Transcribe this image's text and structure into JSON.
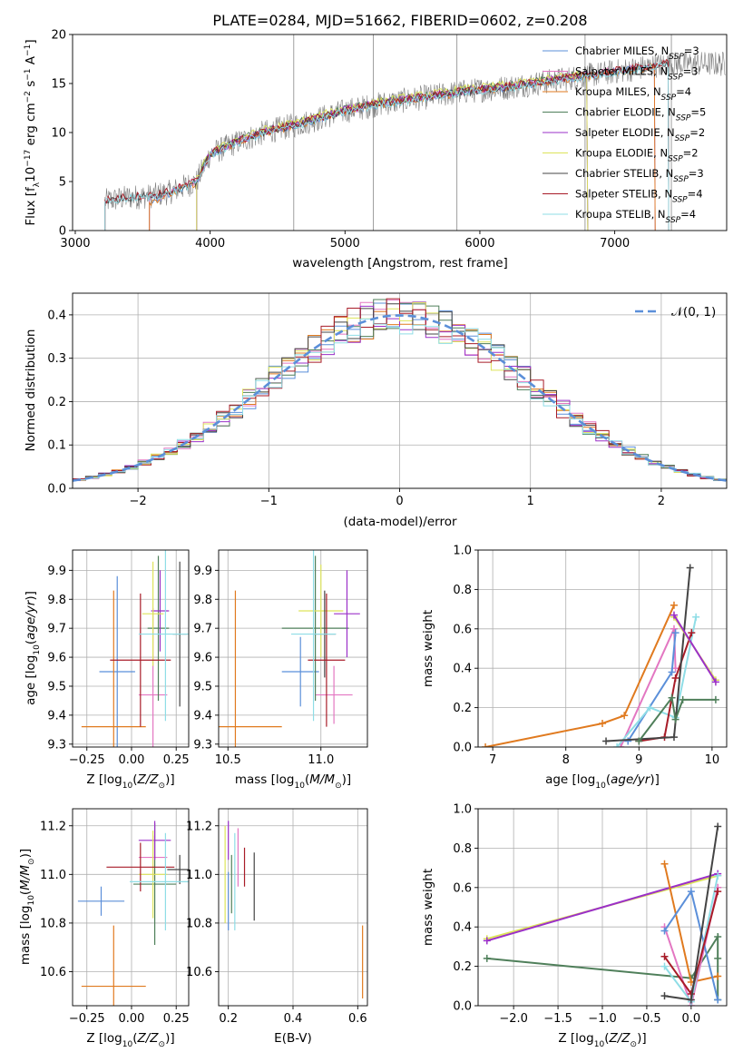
{
  "figure": {
    "title": "PLATE=0284, MJD=51662, FIBERID=0602, z=0.208",
    "colors": {
      "Chabrier MILES": "#5b8fd9",
      "Salpeter MILES": "#e377c2",
      "Kroupa MILES": "#e07a1f",
      "Chabrier ELODIE": "#4f7f5a",
      "Salpeter ELODIE": "#9b30c8",
      "Kroupa ELODIE": "#dde45a",
      "Chabrier STELIB": "#444444",
      "Salpeter STELIB": "#a81c28",
      "Kroupa STELIB": "#8fdde6",
      "data": "#7f7f7f",
      "normal": "#5b8fd9"
    }
  },
  "legend": {
    "spectrum": [
      {
        "name": "Chabrier MILES",
        "nssp": "3"
      },
      {
        "name": "Salpeter MILES",
        "nssp": "3"
      },
      {
        "name": "Kroupa MILES",
        "nssp": "4"
      },
      {
        "name": "Chabrier ELODIE",
        "nssp": "5"
      },
      {
        "name": "Salpeter ELODIE",
        "nssp": "2"
      },
      {
        "name": "Kroupa ELODIE",
        "nssp": "2"
      },
      {
        "name": "Chabrier STELIB",
        "nssp": "3"
      },
      {
        "name": "Salpeter STELIB",
        "nssp": "4"
      },
      {
        "name": "Kroupa STELIB",
        "nssp": "4"
      }
    ],
    "normal": "𝒩(0, 1)"
  },
  "chart_data": [
    {
      "id": "spectrum",
      "type": "line",
      "xlabel": "wavelength [Angstrom, rest frame]",
      "ylabel": "Flux [f_λ 10^−17 erg cm^−2 s^−1 A^−1]",
      "xlim": [
        2980,
        7830
      ],
      "ylim": [
        0,
        20
      ],
      "xticks": [
        3000,
        4000,
        5000,
        6000,
        7000
      ],
      "yticks": [
        0,
        5,
        10,
        15,
        20
      ],
      "grid": false,
      "legend_position": "right",
      "series": [
        {
          "name": "Chabrier MILES",
          "x": [
            3550,
            3700,
            3900,
            4000,
            4200,
            4400,
            4700,
            5000,
            5300,
            5600,
            5900,
            6200,
            6500,
            6800,
            7100,
            7300
          ],
          "y": [
            3.0,
            3.8,
            5.0,
            7.8,
            9.0,
            10.0,
            11.0,
            12.2,
            13.0,
            13.6,
            14.2,
            14.6,
            15.2,
            15.8,
            16.4,
            16.8
          ]
        },
        {
          "name": "Salpeter MILES",
          "x": [
            3550,
            3700,
            3900,
            4000,
            4200,
            4400,
            4700,
            5000,
            5300,
            5600,
            5900,
            6200,
            6500,
            6800,
            7100,
            7300
          ],
          "y": [
            3.1,
            3.9,
            5.1,
            7.9,
            9.1,
            10.1,
            11.1,
            12.3,
            13.1,
            13.7,
            14.3,
            14.7,
            15.3,
            15.9,
            16.5,
            16.9
          ]
        },
        {
          "name": "Kroupa MILES",
          "x": [
            3550,
            3700,
            3900,
            4000,
            4200,
            4400,
            4700,
            5000,
            5300,
            5600,
            5900,
            6200,
            6500,
            6800,
            7100,
            7300
          ],
          "y": [
            2.9,
            3.7,
            4.9,
            7.7,
            9.0,
            9.9,
            11.0,
            12.2,
            13.0,
            13.6,
            14.1,
            14.6,
            15.2,
            15.7,
            16.3,
            16.7
          ]
        },
        {
          "name": "Chabrier ELODIE",
          "x": [
            3900,
            4000,
            4200,
            4400,
            4700,
            5000,
            5300,
            5600,
            5900,
            6200,
            6500,
            6800
          ],
          "y": [
            5.2,
            7.9,
            9.2,
            10.2,
            11.2,
            12.4,
            13.2,
            13.8,
            14.4,
            14.8,
            15.4,
            16.0
          ]
        },
        {
          "name": "Salpeter ELODIE",
          "x": [
            3900,
            4000,
            4200,
            4400,
            4700,
            5000,
            5300,
            5600,
            5900,
            6200,
            6500,
            6800
          ],
          "y": [
            5.1,
            7.8,
            9.1,
            10.1,
            11.1,
            12.3,
            13.1,
            13.7,
            14.3,
            14.7,
            15.3,
            15.9
          ]
        },
        {
          "name": "Kroupa ELODIE",
          "x": [
            3900,
            4000,
            4200,
            4400,
            4700,
            5000,
            5300,
            5600,
            5900,
            6200,
            6500,
            6800
          ],
          "y": [
            5.3,
            8.0,
            9.3,
            10.3,
            11.3,
            12.5,
            13.3,
            13.9,
            14.5,
            14.9,
            15.5,
            16.1
          ]
        },
        {
          "name": "Chabrier STELIB",
          "x": [
            3220,
            3400,
            3550,
            3700,
            3900,
            4000,
            4200,
            4400,
            4700,
            5000,
            5300,
            5600,
            5900,
            6200,
            6500,
            6800,
            7100,
            7400
          ],
          "y": [
            3.0,
            3.4,
            3.5,
            3.9,
            5.0,
            7.8,
            9.0,
            10.0,
            11.0,
            12.2,
            13.0,
            13.6,
            14.2,
            14.6,
            15.2,
            15.8,
            16.4,
            17.0
          ]
        },
        {
          "name": "Salpeter STELIB",
          "x": [
            3220,
            3400,
            3550,
            3700,
            3900,
            4000,
            4200,
            4400,
            4700,
            5000,
            5300,
            5600,
            5900,
            6200,
            6500,
            6800,
            7100,
            7400
          ],
          "y": [
            3.1,
            3.5,
            3.6,
            4.0,
            5.1,
            7.9,
            9.1,
            10.1,
            11.1,
            12.3,
            13.1,
            13.7,
            14.3,
            14.7,
            15.3,
            15.9,
            16.5,
            17.1
          ]
        },
        {
          "name": "Kroupa STELIB",
          "x": [
            3220,
            3400,
            3550,
            3700,
            3900,
            4000,
            4200,
            4400,
            4700,
            5000,
            5300,
            5600,
            5900,
            6200,
            6500,
            6800,
            7100,
            7400
          ],
          "y": [
            2.9,
            3.3,
            3.4,
            3.8,
            4.9,
            7.7,
            8.9,
            9.9,
            10.9,
            12.1,
            12.9,
            13.5,
            14.1,
            14.5,
            15.1,
            15.7,
            16.3,
            16.9
          ]
        }
      ]
    },
    {
      "id": "residuals",
      "type": "line",
      "xlabel": "(data-model)/error",
      "ylabel": "Normed distribution",
      "xlim": [
        -2.5,
        2.5
      ],
      "ylim": [
        0,
        0.45
      ],
      "xticks": [
        -2,
        -1,
        0,
        1,
        2
      ],
      "yticks": [
        0,
        0.1,
        0.2,
        0.3,
        0.4
      ],
      "grid": true,
      "legend_position": "top-right",
      "histogram_bin_width": 0.1
    },
    {
      "id": "age-vs-Z",
      "type": "scatter",
      "xlabel": "Z [log10(Z/Z⊙)]",
      "ylabel": "age [log10(age/yr)]",
      "xlim": [
        -0.33,
        0.32
      ],
      "ylim": [
        9.29,
        9.97
      ],
      "xticks": [
        -0.25,
        0,
        0.25
      ],
      "yticks": [
        9.3,
        9.4,
        9.5,
        9.6,
        9.7,
        9.8,
        9.9
      ],
      "grid": true,
      "points": [
        {
          "name": "Chabrier MILES",
          "x": -0.08,
          "xerr": 0.1,
          "y": 9.55,
          "yerr": 0.33
        },
        {
          "name": "Salpeter MILES",
          "x": 0.12,
          "xerr": 0.08,
          "y": 9.47,
          "yerr": 0.3
        },
        {
          "name": "Kroupa MILES",
          "x": -0.1,
          "xerr": 0.18,
          "y": 9.36,
          "yerr": 0.47
        },
        {
          "name": "Chabrier ELODIE",
          "x": 0.15,
          "xerr": 0.06,
          "y": 9.7,
          "yerr": 0.25
        },
        {
          "name": "Salpeter ELODIE",
          "x": 0.16,
          "xerr": 0.05,
          "y": 9.76,
          "yerr": 0.14
        },
        {
          "name": "Kroupa ELODIE",
          "x": 0.12,
          "xerr": 0.06,
          "y": 9.75,
          "yerr": 0.18
        },
        {
          "name": "Chabrier STELIB",
          "x": 0.27,
          "xerr": 0.04,
          "y": 9.68,
          "yerr": 0.25
        },
        {
          "name": "Salpeter STELIB",
          "x": 0.05,
          "xerr": 0.17,
          "y": 9.59,
          "yerr": 0.23
        },
        {
          "name": "Kroupa STELIB",
          "x": 0.19,
          "xerr": 0.15,
          "y": 9.68,
          "yerr": 0.3
        }
      ]
    },
    {
      "id": "age-vs-mass",
      "type": "scatter",
      "xlabel": "mass [log10(M/M⊙)]",
      "ylabel": "",
      "xlim": [
        10.45,
        11.25
      ],
      "ylim": [
        9.29,
        9.97
      ],
      "xticks": [
        10.5,
        11.0
      ],
      "yticks": [
        9.3,
        9.4,
        9.5,
        9.6,
        9.7,
        9.8,
        9.9
      ],
      "grid": true,
      "points": [
        {
          "name": "Chabrier MILES",
          "x": 10.89,
          "xerr": 0.1,
          "y": 9.55,
          "yerr": 0.12
        },
        {
          "name": "Salpeter MILES",
          "x": 11.07,
          "xerr": 0.1,
          "y": 9.47,
          "yerr": 0.1
        },
        {
          "name": "Kroupa MILES",
          "x": 10.54,
          "xerr": 0.25,
          "y": 9.36,
          "yerr": 0.47
        },
        {
          "name": "Chabrier ELODIE",
          "x": 10.97,
          "xerr": 0.18,
          "y": 9.7,
          "yerr": 0.25
        },
        {
          "name": "Salpeter ELODIE",
          "x": 11.14,
          "xerr": 0.07,
          "y": 9.75,
          "yerr": 0.15
        },
        {
          "name": "Kroupa ELODIE",
          "x": 11.0,
          "xerr": 0.12,
          "y": 9.76,
          "yerr": 0.16
        },
        {
          "name": "Chabrier STELIB",
          "x": 11.02,
          "xerr": 0.06,
          "y": 9.68,
          "yerr": 0.15
        },
        {
          "name": "Salpeter STELIB",
          "x": 11.03,
          "xerr": 0.1,
          "y": 9.59,
          "yerr": 0.23
        },
        {
          "name": "Kroupa STELIB",
          "x": 10.96,
          "xerr": 0.12,
          "y": 9.68,
          "yerr": 0.3
        }
      ]
    },
    {
      "id": "massweight-vs-age",
      "type": "line",
      "xlabel": "age [log10(age/yr)]",
      "ylabel": "mass weight",
      "xlim": [
        6.8,
        10.2
      ],
      "ylim": [
        0,
        1
      ],
      "xticks": [
        7,
        8,
        9,
        10
      ],
      "yticks": [
        0.0,
        0.2,
        0.4,
        0.6,
        0.8,
        1.0
      ],
      "grid": true,
      "series": [
        {
          "name": "Kroupa MILES",
          "x": [
            6.9,
            8.5,
            8.8,
            9.48
          ],
          "y": [
            0.0,
            0.12,
            0.16,
            0.72
          ]
        },
        {
          "name": "Salpeter MILES",
          "x": [
            8.75,
            9.48,
            9.5
          ],
          "y": [
            0.0,
            0.6,
            0.4
          ]
        },
        {
          "name": "Chabrier MILES",
          "x": [
            8.85,
            9.45,
            9.5
          ],
          "y": [
            0.03,
            0.38,
            0.58
          ]
        },
        {
          "name": "Kroupa STELIB",
          "x": [
            8.7,
            9.15,
            9.5,
            9.78
          ],
          "y": [
            0.0,
            0.2,
            0.15,
            0.66
          ]
        },
        {
          "name": "Salpeter STELIB",
          "x": [
            9.0,
            9.35,
            9.5,
            9.72
          ],
          "y": [
            0.03,
            0.05,
            0.35,
            0.58
          ]
        },
        {
          "name": "Chabrier STELIB",
          "x": [
            8.55,
            9.48,
            9.7
          ],
          "y": [
            0.03,
            0.05,
            0.91
          ]
        },
        {
          "name": "Chabrier ELODIE",
          "x": [
            9.0,
            9.45,
            9.5,
            9.6,
            10.05
          ],
          "y": [
            0.03,
            0.25,
            0.14,
            0.24,
            0.24
          ]
        },
        {
          "name": "Kroupa ELODIE",
          "x": [
            9.48,
            10.05
          ],
          "y": [
            0.66,
            0.34
          ]
        },
        {
          "name": "Salpeter ELODIE",
          "x": [
            9.48,
            10.05
          ],
          "y": [
            0.67,
            0.33
          ]
        }
      ]
    },
    {
      "id": "mass-vs-Z",
      "type": "scatter",
      "xlabel": "Z [log10(Z/Z⊙)]",
      "ylabel": "mass [log10(M/M⊙)]",
      "xlim": [
        -0.33,
        0.32
      ],
      "ylim": [
        10.46,
        11.27
      ],
      "xticks": [
        -0.25,
        0,
        0.25
      ],
      "yticks": [
        10.6,
        10.8,
        11.0,
        11.2
      ],
      "grid": true,
      "points": [
        {
          "name": "Chabrier MILES",
          "x": -0.17,
          "xerr": 0.13,
          "y": 10.89,
          "yerr": 0.06
        },
        {
          "name": "Salpeter MILES",
          "x": 0.12,
          "xerr": 0.08,
          "y": 11.07,
          "yerr": 0.09
        },
        {
          "name": "Kroupa MILES",
          "x": -0.1,
          "xerr": 0.18,
          "y": 10.54,
          "yerr": 0.25
        },
        {
          "name": "Chabrier ELODIE",
          "x": 0.13,
          "xerr": 0.12,
          "y": 10.96,
          "yerr": 0.25
        },
        {
          "name": "Salpeter ELODIE",
          "x": 0.13,
          "xerr": 0.09,
          "y": 11.14,
          "yerr": 0.08
        },
        {
          "name": "Kroupa ELODIE",
          "x": 0.12,
          "xerr": 0.08,
          "y": 11.0,
          "yerr": 0.18
        },
        {
          "name": "Chabrier STELIB",
          "x": 0.27,
          "xerr": 0.07,
          "y": 11.02,
          "yerr": 0.06
        },
        {
          "name": "Salpeter STELIB",
          "x": 0.05,
          "xerr": 0.19,
          "y": 11.03,
          "yerr": 0.1
        },
        {
          "name": "Kroupa STELIB",
          "x": 0.19,
          "xerr": 0.2,
          "y": 10.97,
          "yerr": 0.2
        }
      ]
    },
    {
      "id": "mass-vs-EBV",
      "type": "scatter",
      "xlabel": "E(B-V)",
      "ylabel": "",
      "xlim": [
        0.17,
        0.63
      ],
      "ylim": [
        10.46,
        11.27
      ],
      "xticks": [
        0.2,
        0.4,
        0.6
      ],
      "yticks": [
        10.6,
        10.8,
        11.0,
        11.2
      ],
      "grid": true,
      "points": [
        {
          "name": "Chabrier MILES",
          "x": 0.2,
          "y": 10.89,
          "yerr": 0.12
        },
        {
          "name": "Salpeter MILES",
          "x": 0.23,
          "y": 11.07,
          "yerr": 0.12
        },
        {
          "name": "Kroupa MILES",
          "x": 0.615,
          "y": 10.64,
          "yerr": 0.15
        },
        {
          "name": "Chabrier ELODIE",
          "x": 0.21,
          "y": 10.96,
          "yerr": 0.12
        },
        {
          "name": "Salpeter ELODIE",
          "x": 0.2,
          "y": 11.14,
          "yerr": 0.08
        },
        {
          "name": "Kroupa ELODIE",
          "x": 0.19,
          "y": 11.0,
          "yerr": 0.2
        },
        {
          "name": "Chabrier STELIB",
          "x": 0.28,
          "y": 10.95,
          "yerr": 0.14
        },
        {
          "name": "Salpeter STELIB",
          "x": 0.25,
          "y": 11.03,
          "yerr": 0.08
        },
        {
          "name": "Kroupa STELIB",
          "x": 0.22,
          "y": 10.97,
          "yerr": 0.2
        }
      ]
    },
    {
      "id": "massweight-vs-Z",
      "type": "line",
      "xlabel": "Z [log10(Z/Z⊙)]",
      "ylabel": "mass weight",
      "xlim": [
        -2.4,
        0.4
      ],
      "ylim": [
        0,
        1
      ],
      "xticks": [
        -2.0,
        -1.5,
        -1.0,
        -0.5,
        0.0
      ],
      "yticks": [
        0.0,
        0.2,
        0.4,
        0.6,
        0.8,
        1.0
      ],
      "grid": true,
      "series": [
        {
          "name": "Kroupa ELODIE",
          "x": [
            -2.3,
            0.3
          ],
          "y": [
            0.34,
            0.66
          ]
        },
        {
          "name": "Salpeter ELODIE",
          "x": [
            -2.3,
            0.3
          ],
          "y": [
            0.33,
            0.67
          ]
        },
        {
          "name": "Chabrier ELODIE",
          "x": [
            -2.3,
            0.0,
            0.3,
            0.3,
            0.3
          ],
          "y": [
            0.24,
            0.14,
            0.35,
            0.24,
            0.03
          ]
        },
        {
          "name": "Kroupa MILES",
          "x": [
            -0.3,
            0.0,
            0.3
          ],
          "y": [
            0.72,
            0.12,
            0.15
          ]
        },
        {
          "name": "Salpeter MILES",
          "x": [
            -0.3,
            0.0,
            0.3
          ],
          "y": [
            0.4,
            0.0,
            0.6
          ]
        },
        {
          "name": "Chabrier MILES",
          "x": [
            -0.3,
            0.0,
            0.3
          ],
          "y": [
            0.38,
            0.58,
            0.03
          ]
        },
        {
          "name": "Kroupa STELIB",
          "x": [
            -0.3,
            0.0,
            0.3
          ],
          "y": [
            0.2,
            0.02,
            0.66
          ]
        },
        {
          "name": "Salpeter STELIB",
          "x": [
            -0.3,
            0.0,
            0.3
          ],
          "y": [
            0.25,
            0.06,
            0.58
          ]
        },
        {
          "name": "Chabrier STELIB",
          "x": [
            -0.3,
            0.0,
            0.3
          ],
          "y": [
            0.05,
            0.03,
            0.91
          ]
        }
      ]
    }
  ]
}
